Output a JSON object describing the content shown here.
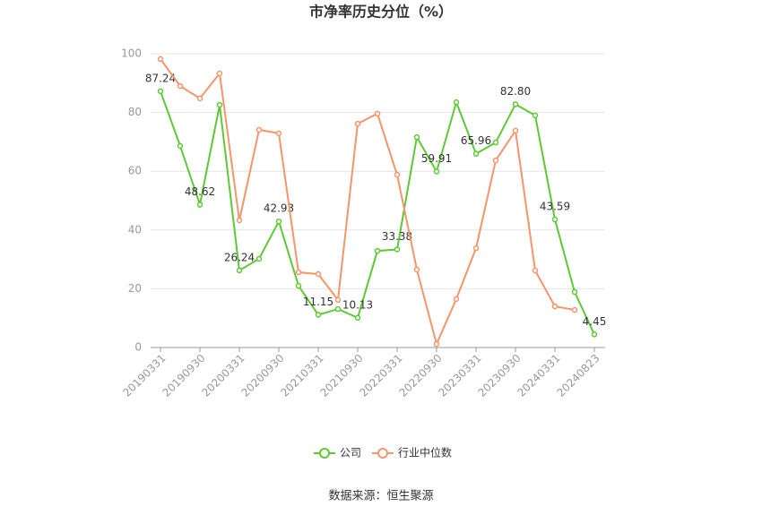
{
  "chart_data": {
    "type": "line",
    "title": "市净率历史分位（%）",
    "categories": [
      "20190331",
      null,
      "20190930",
      null,
      "20200331",
      null,
      "20200930",
      null,
      "20210331",
      null,
      "20210930",
      null,
      "20220331",
      null,
      "20220930",
      null,
      "20230331",
      null,
      "20230930",
      null,
      "20240331",
      null,
      "20240823"
    ],
    "series": [
      {
        "name": "公司",
        "color": "#5fc836",
        "values": [
          87.24,
          68.6,
          48.62,
          82.6,
          26.24,
          30.2,
          42.93,
          21,
          11.15,
          13.1,
          10.13,
          32.9,
          33.38,
          71.6,
          59.91,
          83.5,
          65.96,
          69.8,
          82.8,
          79,
          43.59,
          18.9,
          4.45
        ],
        "value_labels": [
          "87.24",
          null,
          "48.62",
          null,
          "26.24",
          null,
          "42.93",
          null,
          "11.15",
          null,
          "10.13",
          null,
          "33.38",
          null,
          "59.91",
          null,
          "65.96",
          null,
          "82.80",
          null,
          "43.59",
          null,
          "4.45"
        ]
      },
      {
        "name": "行业中位数",
        "color": "#f4956b",
        "values": [
          98.2,
          89,
          84.8,
          93.3,
          43.3,
          74.1,
          72.9,
          25.6,
          25,
          16.2,
          76.2,
          79.6,
          58.8,
          26.5,
          1.2,
          16.5,
          33.8,
          63.7,
          73.8,
          26.2,
          14,
          12.8,
          null
        ]
      }
    ],
    "ylim": [
      0,
      100
    ],
    "yticks": [
      0,
      20,
      40,
      60,
      80,
      100
    ],
    "grid": true,
    "legend": "bottom",
    "source": "数据来源：恒生聚源"
  }
}
